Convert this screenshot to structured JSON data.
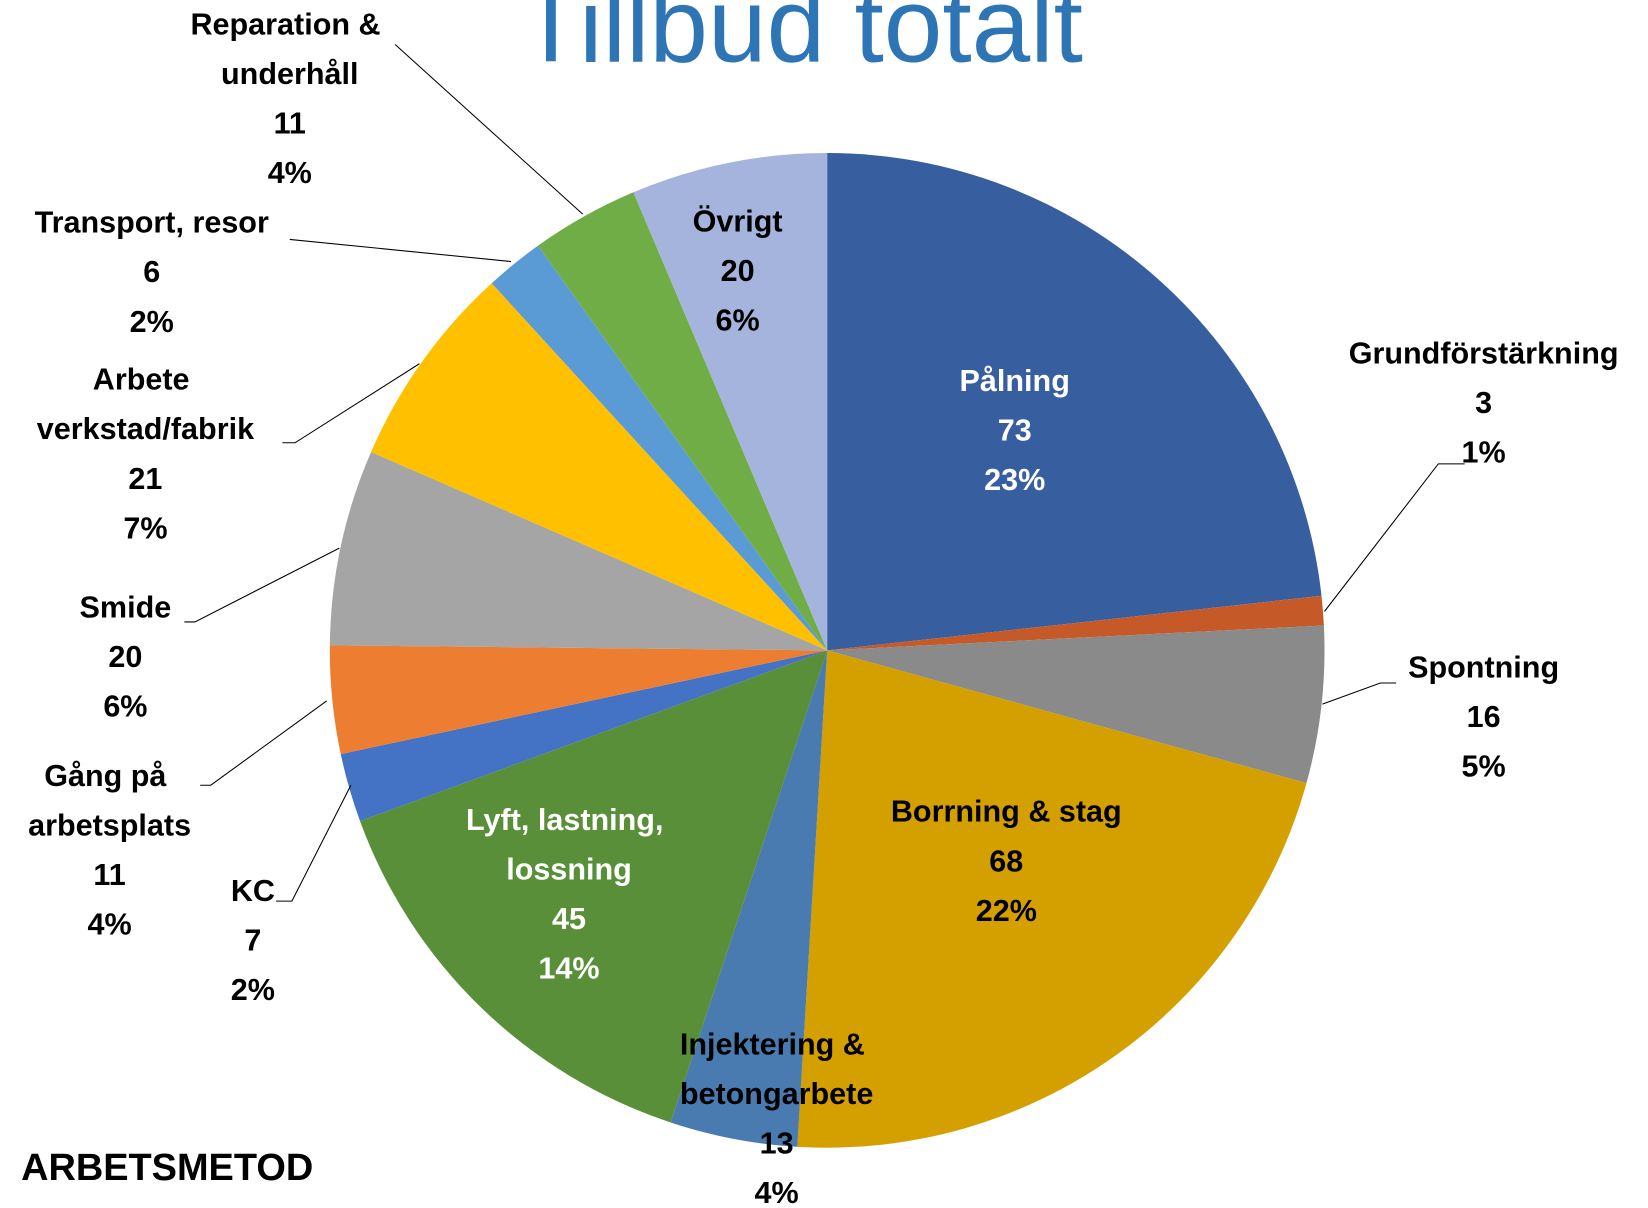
{
  "chart_data": {
    "type": "pie",
    "title": "Tillbud totalt",
    "subtitle": "ARBETSMETOD",
    "categories": [
      "Pålning",
      "Grundförstärkning",
      "Spontning",
      "Borrning & stag",
      "Injektering & betongarbete",
      "Lyft, lastning, lossning",
      "KC",
      "Gång på arbetsplats",
      "Smide",
      "Arbete verkstad/fabrik",
      "Transport, resor",
      "Reparation & underhåll",
      "Övrigt"
    ],
    "values": [
      73,
      3,
      16,
      68,
      13,
      45,
      7,
      11,
      20,
      21,
      6,
      11,
      20
    ],
    "percent_labels": [
      "23%",
      "1%",
      "5%",
      "22%",
      "4%",
      "14%",
      "2%",
      "4%",
      "6%",
      "7%",
      "2%",
      "4%",
      "6%"
    ],
    "colors": [
      "#375e9f",
      "#c55a28",
      "#8a8a8a",
      "#d4a000",
      "#4a7bb0",
      "#5a8f3a",
      "#4472c4",
      "#ed7d31",
      "#a5a5a5",
      "#ffc000",
      "#5b9bd5",
      "#70ad47",
      "#a5b4dc"
    ]
  }
}
